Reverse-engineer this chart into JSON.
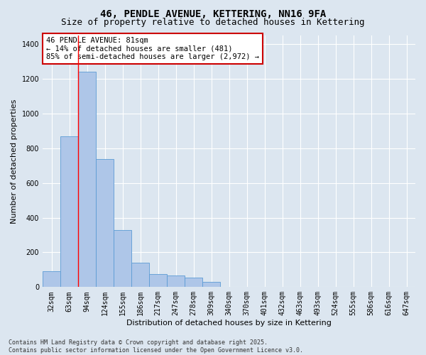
{
  "title_line1": "46, PENDLE AVENUE, KETTERING, NN16 9FA",
  "title_line2": "Size of property relative to detached houses in Kettering",
  "xlabel": "Distribution of detached houses by size in Kettering",
  "ylabel": "Number of detached properties",
  "categories": [
    "32sqm",
    "63sqm",
    "94sqm",
    "124sqm",
    "155sqm",
    "186sqm",
    "217sqm",
    "247sqm",
    "278sqm",
    "309sqm",
    "340sqm",
    "370sqm",
    "401sqm",
    "432sqm",
    "463sqm",
    "493sqm",
    "524sqm",
    "555sqm",
    "586sqm",
    "616sqm",
    "647sqm"
  ],
  "values": [
    90,
    870,
    1240,
    740,
    330,
    140,
    75,
    65,
    55,
    30,
    0,
    0,
    0,
    0,
    0,
    0,
    0,
    0,
    0,
    0,
    0
  ],
  "bar_color": "#aec6e8",
  "bar_edge_color": "#5b9bd5",
  "background_color": "#dce6f0",
  "grid_color": "#ffffff",
  "red_line_x": 1.5,
  "annotation_text": "46 PENDLE AVENUE: 81sqm\n← 14% of detached houses are smaller (481)\n85% of semi-detached houses are larger (2,972) →",
  "annotation_box_color": "#ffffff",
  "annotation_box_edge": "#cc0000",
  "annotation_text_color": "#000000",
  "ylim": [
    0,
    1450
  ],
  "yticks": [
    0,
    200,
    400,
    600,
    800,
    1000,
    1200,
    1400
  ],
  "footer_line1": "Contains HM Land Registry data © Crown copyright and database right 2025.",
  "footer_line2": "Contains public sector information licensed under the Open Government Licence v3.0.",
  "title_fontsize": 10,
  "subtitle_fontsize": 9,
  "axis_label_fontsize": 8,
  "tick_fontsize": 7,
  "annotation_fontsize": 7.5
}
